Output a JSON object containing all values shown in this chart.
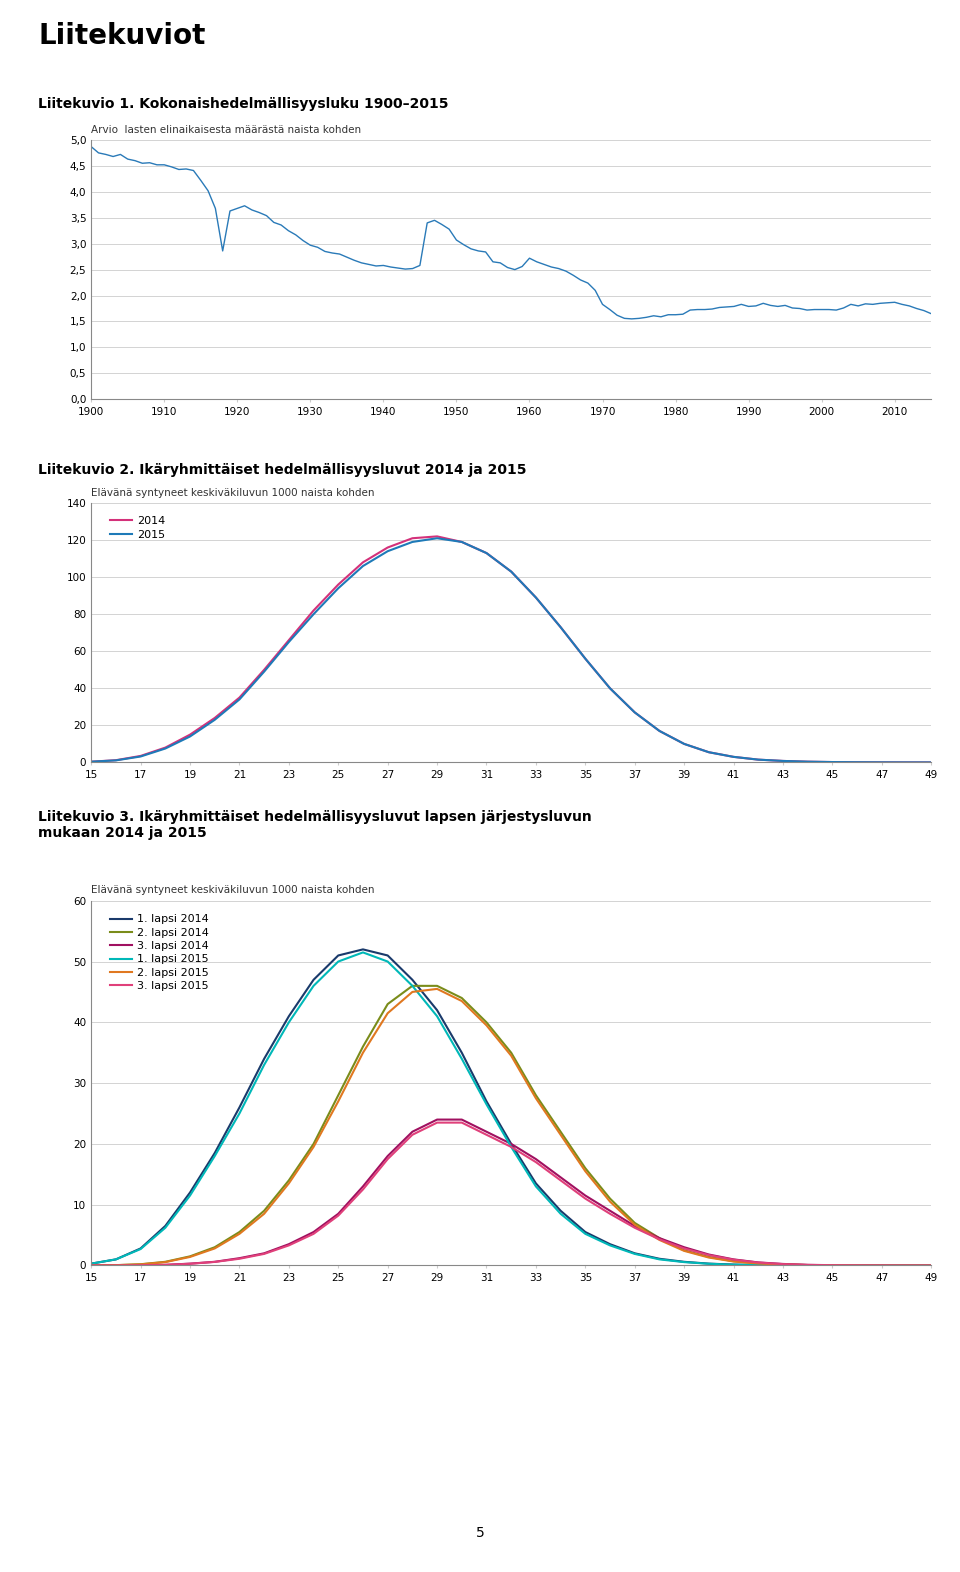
{
  "page_title": "Liitekuviot",
  "fig1_title": "Liitekuvio 1. Kokonaishedelmällisyysluku 1900–2015",
  "fig1_subtitle": "Arvio  lasten elinaikaisesta määrästä naista kohden",
  "fig2_title": "Liitekuvio 2. Ikäryhmittäiset hedelmällisyysluvut 2014 ja 2015",
  "fig2_subtitle": "Elävänä syntyneet keskiväkiluvun 1000 naista kohden",
  "fig3_title": "Liitekuvio 3. Ikäryhmittäiset hedelmällisyysluvut lapsen järjestysluvun\nmukaan 2014 ja 2015",
  "fig3_subtitle": "Elävänä syntyneet keskiväkiluvun 1000 naista kohden",
  "page_number": "5",
  "fig1_years": [
    1900,
    1901,
    1902,
    1903,
    1904,
    1905,
    1906,
    1907,
    1908,
    1909,
    1910,
    1911,
    1912,
    1913,
    1914,
    1915,
    1916,
    1917,
    1918,
    1919,
    1920,
    1921,
    1922,
    1923,
    1924,
    1925,
    1926,
    1927,
    1928,
    1929,
    1930,
    1931,
    1932,
    1933,
    1934,
    1935,
    1936,
    1937,
    1938,
    1939,
    1940,
    1941,
    1942,
    1943,
    1944,
    1945,
    1946,
    1947,
    1948,
    1949,
    1950,
    1951,
    1952,
    1953,
    1954,
    1955,
    1956,
    1957,
    1958,
    1959,
    1960,
    1961,
    1962,
    1963,
    1964,
    1965,
    1966,
    1967,
    1968,
    1969,
    1970,
    1971,
    1972,
    1973,
    1974,
    1975,
    1976,
    1977,
    1978,
    1979,
    1980,
    1981,
    1982,
    1983,
    1984,
    1985,
    1986,
    1987,
    1988,
    1989,
    1990,
    1991,
    1992,
    1993,
    1994,
    1995,
    1996,
    1997,
    1998,
    1999,
    2000,
    2001,
    2002,
    2003,
    2004,
    2005,
    2006,
    2007,
    2008,
    2009,
    2010,
    2011,
    2012,
    2013,
    2014,
    2015
  ],
  "fig1_values": [
    4.87,
    4.75,
    4.72,
    4.68,
    4.72,
    4.63,
    4.6,
    4.55,
    4.56,
    4.52,
    4.52,
    4.48,
    4.43,
    4.44,
    4.41,
    4.22,
    4.02,
    3.68,
    2.86,
    3.63,
    3.68,
    3.73,
    3.65,
    3.6,
    3.54,
    3.41,
    3.36,
    3.25,
    3.17,
    3.06,
    2.97,
    2.93,
    2.85,
    2.82,
    2.8,
    2.74,
    2.68,
    2.63,
    2.6,
    2.57,
    2.58,
    2.55,
    2.53,
    2.51,
    2.52,
    2.58,
    3.4,
    3.45,
    3.37,
    3.28,
    3.07,
    2.98,
    2.9,
    2.86,
    2.84,
    2.65,
    2.63,
    2.54,
    2.5,
    2.56,
    2.72,
    2.65,
    2.6,
    2.55,
    2.52,
    2.47,
    2.39,
    2.3,
    2.24,
    2.1,
    1.83,
    1.73,
    1.62,
    1.56,
    1.55,
    1.56,
    1.58,
    1.61,
    1.59,
    1.63,
    1.63,
    1.64,
    1.72,
    1.73,
    1.73,
    1.74,
    1.77,
    1.78,
    1.79,
    1.83,
    1.79,
    1.8,
    1.85,
    1.81,
    1.79,
    1.81,
    1.76,
    1.75,
    1.72,
    1.73,
    1.73,
    1.73,
    1.72,
    1.76,
    1.83,
    1.8,
    1.84,
    1.83,
    1.85,
    1.86,
    1.87,
    1.83,
    1.8,
    1.75,
    1.71,
    1.65
  ],
  "fig2_ages": [
    15,
    16,
    17,
    18,
    19,
    20,
    21,
    22,
    23,
    24,
    25,
    26,
    27,
    28,
    29,
    30,
    31,
    32,
    33,
    34,
    35,
    36,
    37,
    38,
    39,
    40,
    41,
    42,
    43,
    44,
    45,
    46,
    47,
    48,
    49
  ],
  "fig2_2014": [
    0.4,
    1.2,
    3.5,
    8.0,
    15.0,
    24.0,
    35.0,
    50.0,
    66.0,
    82.0,
    96.0,
    108.0,
    116.0,
    121.0,
    122.0,
    119.0,
    113.0,
    103.0,
    89.0,
    73.0,
    56.0,
    40.0,
    27.0,
    17.0,
    10.0,
    5.5,
    3.0,
    1.5,
    0.8,
    0.4,
    0.2,
    0.1,
    0.05,
    0.02,
    0.01
  ],
  "fig2_2015": [
    0.4,
    1.1,
    3.2,
    7.5,
    14.0,
    23.0,
    34.0,
    49.0,
    65.0,
    80.0,
    94.0,
    106.0,
    114.0,
    119.0,
    121.0,
    119.0,
    113.0,
    103.0,
    89.0,
    73.0,
    56.0,
    40.0,
    27.0,
    17.0,
    10.0,
    5.5,
    3.0,
    1.5,
    0.8,
    0.4,
    0.2,
    0.1,
    0.05,
    0.02,
    0.01
  ],
  "fig2_color_2014": "#d4317a",
  "fig2_color_2015": "#1e7ab8",
  "fig3_ages": [
    15,
    16,
    17,
    18,
    19,
    20,
    21,
    22,
    23,
    24,
    25,
    26,
    27,
    28,
    29,
    30,
    31,
    32,
    33,
    34,
    35,
    36,
    37,
    38,
    39,
    40,
    41,
    42,
    43,
    44,
    45,
    46,
    47,
    48,
    49
  ],
  "fig3_1lapsi2014": [
    0.3,
    1.0,
    2.8,
    6.5,
    12.0,
    18.5,
    26.0,
    34.0,
    41.0,
    47.0,
    51.0,
    52.0,
    51.0,
    47.0,
    42.0,
    35.0,
    27.0,
    20.0,
    13.5,
    9.0,
    5.5,
    3.5,
    2.0,
    1.1,
    0.6,
    0.3,
    0.15,
    0.07,
    0.03,
    0.01,
    0.0,
    0.0,
    0.0,
    0.0,
    0.0
  ],
  "fig3_2lapsi2014": [
    0.0,
    0.05,
    0.2,
    0.6,
    1.5,
    3.0,
    5.5,
    9.0,
    14.0,
    20.0,
    28.0,
    36.0,
    43.0,
    46.0,
    46.0,
    44.0,
    40.0,
    35.0,
    28.0,
    22.0,
    16.0,
    11.0,
    7.0,
    4.5,
    2.5,
    1.4,
    0.7,
    0.35,
    0.15,
    0.07,
    0.03,
    0.01,
    0.0,
    0.0,
    0.0
  ],
  "fig3_3lapsi2014": [
    0.0,
    0.0,
    0.05,
    0.1,
    0.3,
    0.6,
    1.2,
    2.0,
    3.5,
    5.5,
    8.5,
    13.0,
    18.0,
    22.0,
    24.0,
    24.0,
    22.0,
    20.0,
    17.5,
    14.5,
    11.5,
    9.0,
    6.5,
    4.5,
    3.0,
    1.8,
    1.0,
    0.5,
    0.25,
    0.1,
    0.05,
    0.02,
    0.01,
    0.0,
    0.0
  ],
  "fig3_1lapsi2015": [
    0.3,
    1.0,
    2.7,
    6.2,
    11.5,
    18.0,
    25.0,
    33.0,
    40.0,
    46.0,
    50.0,
    51.5,
    50.0,
    46.0,
    41.0,
    34.0,
    26.5,
    19.5,
    13.0,
    8.5,
    5.2,
    3.3,
    1.9,
    1.0,
    0.55,
    0.28,
    0.13,
    0.06,
    0.03,
    0.01,
    0.0,
    0.0,
    0.0,
    0.0,
    0.0
  ],
  "fig3_2lapsi2015": [
    0.0,
    0.05,
    0.18,
    0.55,
    1.4,
    2.8,
    5.2,
    8.5,
    13.5,
    19.5,
    27.0,
    35.0,
    41.5,
    45.0,
    45.5,
    43.5,
    39.5,
    34.5,
    27.5,
    21.5,
    15.5,
    10.5,
    6.7,
    4.2,
    2.4,
    1.3,
    0.65,
    0.32,
    0.14,
    0.06,
    0.03,
    0.01,
    0.0,
    0.0,
    0.0
  ],
  "fig3_3lapsi2015": [
    0.0,
    0.0,
    0.04,
    0.1,
    0.28,
    0.58,
    1.1,
    1.9,
    3.3,
    5.2,
    8.2,
    12.5,
    17.5,
    21.5,
    23.5,
    23.5,
    21.5,
    19.5,
    17.0,
    14.0,
    11.0,
    8.5,
    6.2,
    4.3,
    2.8,
    1.7,
    0.95,
    0.48,
    0.22,
    0.09,
    0.04,
    0.02,
    0.01,
    0.0,
    0.0
  ],
  "fig3_color_1lapsi2014": "#1a3a6b",
  "fig3_color_2lapsi2014": "#7a8c1a",
  "fig3_color_3lapsi2014": "#a01060",
  "fig3_color_1lapsi2015": "#00b8b8",
  "fig3_color_2lapsi2015": "#e07820",
  "fig3_color_3lapsi2015": "#e0407a",
  "background_color": "#ffffff",
  "line_color": "#2a7ab8",
  "grid_color": "#cccccc",
  "text_color": "#000000"
}
